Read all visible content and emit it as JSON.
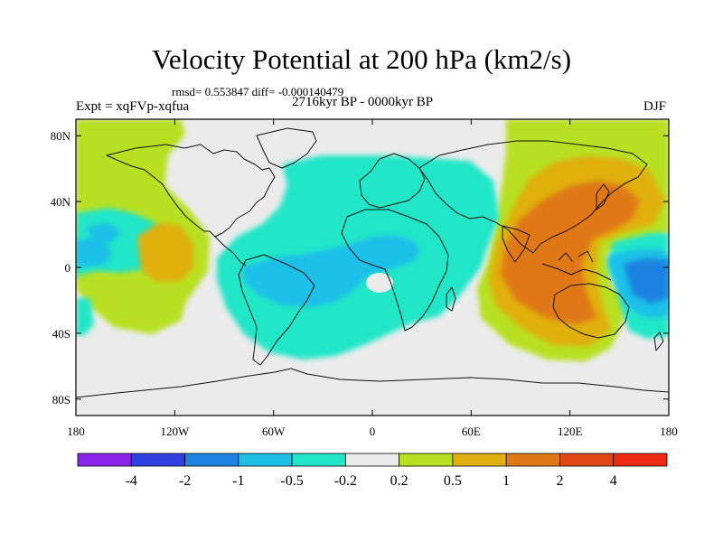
{
  "header": {
    "title": "Velocity Potential at 200 hPa (km2/s)",
    "stats": "rmsd= 0.553847 diff= -0.000140479",
    "experiment": "Expt = xqFVp-xqfua",
    "period": "2716kyr BP - 0000kyr BP",
    "season": "DJF"
  },
  "colors": {
    "ocean_bg": "#ebebeb",
    "coast": "#111111",
    "bins": [
      "#8a24e8",
      "#2f3fe0",
      "#1e82e0",
      "#1ec0e8",
      "#22e6c8",
      "#ebebeb",
      "#b8e020",
      "#e0b010",
      "#e07818",
      "#e04818",
      "#ee2a10"
    ]
  },
  "chart_data": {
    "type": "heatmap",
    "title": "Velocity Potential at 200 hPa (km2/s)",
    "units": "km2/s",
    "projection": "cylindrical-equidistant",
    "xlim": [
      -180,
      180
    ],
    "ylim": [
      -90,
      90
    ],
    "x_ticks": [
      -180,
      -120,
      -60,
      0,
      60,
      120,
      180
    ],
    "x_tick_labels": [
      "180",
      "120W",
      "60W",
      "0",
      "60E",
      "120E",
      "180"
    ],
    "y_ticks": [
      80,
      40,
      0,
      -40,
      -80
    ],
    "y_tick_labels": [
      "80N",
      "40N",
      "0",
      "40S",
      "80S"
    ],
    "colorbar_levels": [
      -4,
      -2,
      -1,
      -0.5,
      -0.2,
      0.2,
      0.5,
      1,
      2,
      4
    ],
    "colorbar_labels": [
      "-4",
      "-2",
      "-1",
      "-0.5",
      "-0.2",
      "0.2",
      "0.5",
      "1",
      "2",
      "4"
    ],
    "anomaly_centers": [
      {
        "name": "Atlantic-Africa negative",
        "lon": -35,
        "lat": 0,
        "value": -0.8
      },
      {
        "name": "West Pacific positive",
        "lon": 120,
        "lat": 20,
        "value": 1.5
      },
      {
        "name": "Central South Pacific negative",
        "lon": 160,
        "lat": 0,
        "value": -1.2
      },
      {
        "name": "East Pacific positive",
        "lon": -125,
        "lat": 10,
        "value": 0.6
      }
    ]
  }
}
